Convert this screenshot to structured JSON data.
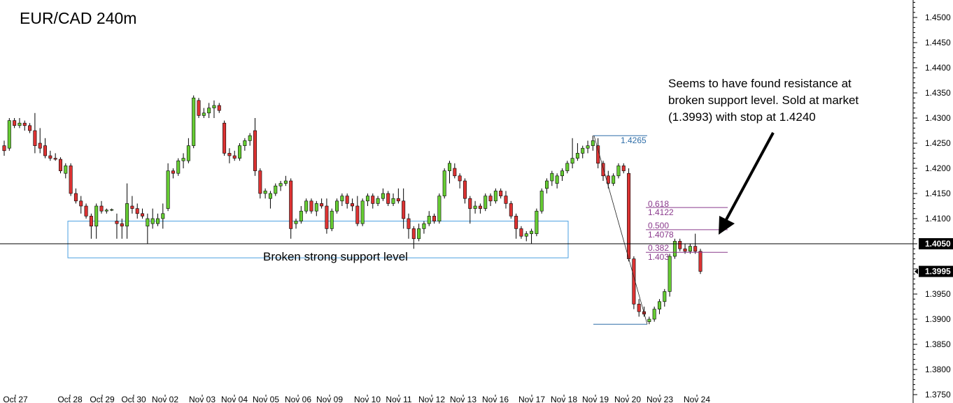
{
  "chart_data": {
    "type": "candlestick",
    "title": "EUR/CAD 240m",
    "instrument": "EUR/CAD",
    "timeframe": "240m",
    "ylim": [
      1.3745,
      1.4535
    ],
    "y_ticks": [
      "1.4500",
      "1.4450",
      "1.4400",
      "1.4350",
      "1.4300",
      "1.4250",
      "1.4200",
      "1.4150",
      "1.4100",
      "1.4050",
      "1.3995",
      "1.3950",
      "1.3900",
      "1.3850",
      "1.3800",
      "1.3750"
    ],
    "x_labels": [
      "Oct 27",
      "Oct 28",
      "Oct 29",
      "Oct 30",
      "Nov 02",
      "Nov 03",
      "Nov 04",
      "Nov 05",
      "Nov 06",
      "Nov 09",
      "Nov 10",
      "Nov 11",
      "Nov 12",
      "Nov 13",
      "Nov 16",
      "Nov 17",
      "Nov 18",
      "Nov 19",
      "Nov 20",
      "Nov 23",
      "Nov 24"
    ],
    "horizontal_line": {
      "value": 1.405,
      "label": "1.4050",
      "color": "#000000"
    },
    "current_price": {
      "value": 1.3995,
      "label": "1.3995"
    },
    "support_zone": {
      "top": 1.4095,
      "bottom": 1.4022,
      "label": "Broken strong support level",
      "color": "#4a9fe0"
    },
    "swing_high": {
      "value": 1.4265,
      "label": "1.4265"
    },
    "swing_low": {
      "value": 1.389
    },
    "fib_levels": [
      {
        "ratio": "0.618",
        "value": 1.4122,
        "label": "1.4122"
      },
      {
        "ratio": "0.500",
        "value": 1.4078,
        "label": "1.4078"
      },
      {
        "ratio": "0.382",
        "value": 1.4033,
        "label": "1.403"
      }
    ],
    "annotation": "Seems to have found resistance at broken support level. Sold at market (1.3993) with stop at 1.4240",
    "colors": {
      "bull": "#66cc33",
      "bear": "#dd3333",
      "wick": "#000000",
      "fib": "#8a3a8c",
      "swing": "#2f6ea8"
    },
    "candles": [
      [
        1.4245,
        1.4255,
        1.4225,
        1.4235
      ],
      [
        1.424,
        1.43,
        1.4235,
        1.4295
      ],
      [
        1.4295,
        1.43,
        1.428,
        1.4285
      ],
      [
        1.4285,
        1.43,
        1.428,
        1.429
      ],
      [
        1.429,
        1.4295,
        1.4275,
        1.4285
      ],
      [
        1.4285,
        1.429,
        1.427,
        1.4275
      ],
      [
        1.4275,
        1.431,
        1.423,
        1.4245
      ],
      [
        1.425,
        1.428,
        1.423,
        1.424
      ],
      [
        1.4245,
        1.426,
        1.422,
        1.4225
      ],
      [
        1.4225,
        1.4235,
        1.4215,
        1.422
      ],
      [
        1.422,
        1.423,
        1.4215,
        1.4218
      ],
      [
        1.4218,
        1.4222,
        1.419,
        1.4195
      ],
      [
        1.419,
        1.421,
        1.418,
        1.4205
      ],
      [
        1.4205,
        1.421,
        1.4145,
        1.415
      ],
      [
        1.415,
        1.416,
        1.413,
        1.4135
      ],
      [
        1.4135,
        1.4145,
        1.411,
        1.4125
      ],
      [
        1.4125,
        1.413,
        1.41,
        1.4105
      ],
      [
        1.4105,
        1.411,
        1.406,
        1.4085
      ],
      [
        1.4085,
        1.413,
        1.406,
        1.4125
      ],
      [
        1.4125,
        1.4135,
        1.411,
        1.4115
      ],
      [
        1.4115,
        1.412,
        1.411,
        1.4117
      ],
      [
        1.4117,
        1.412,
        1.4115,
        1.4118
      ],
      [
        1.4095,
        1.411,
        1.406,
        1.409
      ],
      [
        1.409,
        1.41,
        1.406,
        1.4085
      ],
      [
        1.4085,
        1.417,
        1.406,
        1.413
      ],
      [
        1.4125,
        1.4145,
        1.411,
        1.412
      ],
      [
        1.412,
        1.413,
        1.41,
        1.411
      ],
      [
        1.411,
        1.412,
        1.41,
        1.4105
      ],
      [
        1.4085,
        1.411,
        1.405,
        1.41
      ],
      [
        1.409,
        1.412,
        1.408,
        1.41
      ],
      [
        1.409,
        1.411,
        1.4085,
        1.41
      ],
      [
        1.41,
        1.413,
        1.408,
        1.411
      ],
      [
        1.412,
        1.421,
        1.4115,
        1.4195
      ],
      [
        1.4195,
        1.42,
        1.418,
        1.419
      ],
      [
        1.419,
        1.422,
        1.4185,
        1.4215
      ],
      [
        1.4215,
        1.423,
        1.42,
        1.422
      ],
      [
        1.4215,
        1.426,
        1.421,
        1.4245
      ],
      [
        1.4245,
        1.4345,
        1.424,
        1.434
      ],
      [
        1.4335,
        1.434,
        1.43,
        1.4305
      ],
      [
        1.4305,
        1.432,
        1.43,
        1.431
      ],
      [
        1.431,
        1.433,
        1.43,
        1.432
      ],
      [
        1.432,
        1.4335,
        1.43,
        1.4325
      ],
      [
        1.4325,
        1.433,
        1.431,
        1.4315
      ],
      [
        1.429,
        1.4295,
        1.4225,
        1.423
      ],
      [
        1.423,
        1.424,
        1.421,
        1.4225
      ],
      [
        1.4225,
        1.4235,
        1.4215,
        1.422
      ],
      [
        1.422,
        1.425,
        1.4215,
        1.4245
      ],
      [
        1.4245,
        1.426,
        1.4235,
        1.4255
      ],
      [
        1.4255,
        1.427,
        1.4245,
        1.4265
      ],
      [
        1.4275,
        1.43,
        1.4185,
        1.4195
      ],
      [
        1.4195,
        1.42,
        1.414,
        1.415
      ],
      [
        1.415,
        1.416,
        1.414,
        1.4155
      ],
      [
        1.414,
        1.4155,
        1.412,
        1.415
      ],
      [
        1.415,
        1.417,
        1.4145,
        1.4165
      ],
      [
        1.4165,
        1.4175,
        1.4155,
        1.417
      ],
      [
        1.417,
        1.4185,
        1.4165,
        1.4175
      ],
      [
        1.4175,
        1.418,
        1.406,
        1.408
      ],
      [
        1.409,
        1.41,
        1.408,
        1.4095
      ],
      [
        1.4095,
        1.4125,
        1.409,
        1.4115
      ],
      [
        1.4115,
        1.414,
        1.411,
        1.4135
      ],
      [
        1.4135,
        1.414,
        1.411,
        1.4115
      ],
      [
        1.4115,
        1.4135,
        1.4105,
        1.413
      ],
      [
        1.413,
        1.414,
        1.412,
        1.4125
      ],
      [
        1.4125,
        1.414,
        1.407,
        1.408
      ],
      [
        1.408,
        1.412,
        1.4075,
        1.4115
      ],
      [
        1.4115,
        1.414,
        1.411,
        1.4135
      ],
      [
        1.4135,
        1.415,
        1.4125,
        1.4145
      ],
      [
        1.4145,
        1.415,
        1.412,
        1.413
      ],
      [
        1.413,
        1.414,
        1.4115,
        1.4125
      ],
      [
        1.4125,
        1.4145,
        1.4085,
        1.409
      ],
      [
        1.409,
        1.414,
        1.4085,
        1.4135
      ],
      [
        1.4135,
        1.415,
        1.4125,
        1.4145
      ],
      [
        1.4145,
        1.415,
        1.412,
        1.413
      ],
      [
        1.413,
        1.4145,
        1.4125,
        1.414
      ],
      [
        1.414,
        1.416,
        1.4135,
        1.415
      ],
      [
        1.415,
        1.4155,
        1.4125,
        1.413
      ],
      [
        1.413,
        1.415,
        1.4125,
        1.414
      ],
      [
        1.414,
        1.416,
        1.413,
        1.4135
      ],
      [
        1.4135,
        1.416,
        1.408,
        1.41
      ],
      [
        1.41,
        1.411,
        1.406,
        1.408
      ],
      [
        1.408,
        1.4085,
        1.404,
        1.406
      ],
      [
        1.406,
        1.409,
        1.4055,
        1.408
      ],
      [
        1.408,
        1.4095,
        1.407,
        1.409
      ],
      [
        1.409,
        1.4115,
        1.4085,
        1.4105
      ],
      [
        1.4105,
        1.411,
        1.409,
        1.4095
      ],
      [
        1.4095,
        1.415,
        1.409,
        1.4145
      ],
      [
        1.4145,
        1.42,
        1.414,
        1.4195
      ],
      [
        1.4195,
        1.4215,
        1.417,
        1.421
      ],
      [
        1.42,
        1.421,
        1.418,
        1.4185
      ],
      [
        1.4185,
        1.419,
        1.416,
        1.4175
      ],
      [
        1.4175,
        1.418,
        1.413,
        1.414
      ],
      [
        1.414,
        1.4145,
        1.409,
        1.412
      ],
      [
        1.412,
        1.4135,
        1.411,
        1.4125
      ],
      [
        1.4125,
        1.413,
        1.411,
        1.412
      ],
      [
        1.412,
        1.415,
        1.4115,
        1.4145
      ],
      [
        1.4145,
        1.415,
        1.4125,
        1.4135
      ],
      [
        1.4135,
        1.416,
        1.413,
        1.4155
      ],
      [
        1.4155,
        1.416,
        1.414,
        1.4145
      ],
      [
        1.4145,
        1.4155,
        1.412,
        1.413
      ],
      [
        1.413,
        1.4135,
        1.41,
        1.4105
      ],
      [
        1.4105,
        1.411,
        1.406,
        1.408
      ],
      [
        1.408,
        1.4085,
        1.406,
        1.4065
      ],
      [
        1.4065,
        1.4075,
        1.4055,
        1.407
      ],
      [
        1.407,
        1.408,
        1.405,
        1.4075
      ],
      [
        1.407,
        1.412,
        1.4065,
        1.4115
      ],
      [
        1.4115,
        1.416,
        1.411,
        1.4155
      ],
      [
        1.416,
        1.418,
        1.415,
        1.4175
      ],
      [
        1.4175,
        1.4195,
        1.4165,
        1.419
      ],
      [
        1.417,
        1.419,
        1.416,
        1.4185
      ],
      [
        1.4185,
        1.42,
        1.4175,
        1.4195
      ],
      [
        1.4195,
        1.4215,
        1.419,
        1.421
      ],
      [
        1.421,
        1.426,
        1.42,
        1.422
      ],
      [
        1.422,
        1.425,
        1.4215,
        1.423
      ],
      [
        1.423,
        1.4245,
        1.422,
        1.424
      ],
      [
        1.424,
        1.4255,
        1.423,
        1.4245
      ],
      [
        1.4245,
        1.4265,
        1.4235,
        1.4255
      ],
      [
        1.4245,
        1.426,
        1.42,
        1.421
      ],
      [
        1.421,
        1.4215,
        1.4175,
        1.4185
      ],
      [
        1.4185,
        1.4195,
        1.416,
        1.417
      ],
      [
        1.417,
        1.419,
        1.4165,
        1.4185
      ],
      [
        1.4185,
        1.421,
        1.418,
        1.4205
      ],
      [
        1.4205,
        1.421,
        1.419,
        1.4195
      ],
      [
        1.419,
        1.42,
        1.4015,
        1.402
      ],
      [
        1.402,
        1.4025,
        1.392,
        1.393
      ],
      [
        1.393,
        1.394,
        1.3905,
        1.3915
      ],
      [
        1.3915,
        1.3925,
        1.3905,
        1.391
      ],
      [
        1.3895,
        1.3905,
        1.389,
        1.39
      ],
      [
        1.39,
        1.3925,
        1.3895,
        1.392
      ],
      [
        1.392,
        1.394,
        1.391,
        1.3935
      ],
      [
        1.3935,
        1.396,
        1.3925,
        1.3955
      ],
      [
        1.3955,
        1.403,
        1.3945,
        1.4025
      ],
      [
        1.4025,
        1.406,
        1.402,
        1.4055
      ],
      [
        1.4055,
        1.406,
        1.4035,
        1.404
      ],
      [
        1.404,
        1.405,
        1.403,
        1.4035
      ],
      [
        1.4035,
        1.405,
        1.403,
        1.4045
      ],
      [
        1.4045,
        1.407,
        1.403,
        1.4035
      ],
      [
        1.4035,
        1.404,
        1.399,
        1.3995
      ]
    ],
    "y_axis_side": "right",
    "grid": false
  }
}
